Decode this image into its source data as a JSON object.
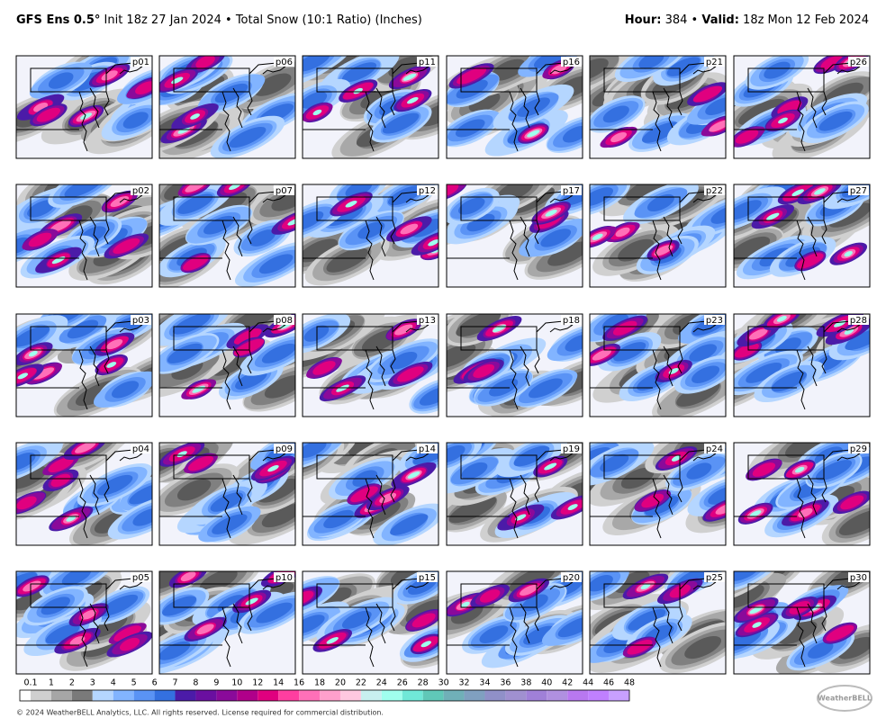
{
  "header": {
    "model": "GFS Ens 0.5°",
    "init": "Init 18z 27 Jan 2024",
    "separator": "•",
    "product": "Total Snow (10:1 Ratio) (Inches)",
    "hour_label": "Hour:",
    "hour": "384",
    "valid_label": "Valid:",
    "valid": "18z Mon 12 Feb 2024"
  },
  "panels": [
    {
      "label": "p01"
    },
    {
      "label": "p06"
    },
    {
      "label": "p11"
    },
    {
      "label": "p16"
    },
    {
      "label": "p21"
    },
    {
      "label": "p26"
    },
    {
      "label": "p02"
    },
    {
      "label": "p07"
    },
    {
      "label": "p12"
    },
    {
      "label": "p17"
    },
    {
      "label": "p22"
    },
    {
      "label": "p27"
    },
    {
      "label": "p03"
    },
    {
      "label": "p08"
    },
    {
      "label": "p13"
    },
    {
      "label": "p18"
    },
    {
      "label": "p23"
    },
    {
      "label": "p28"
    },
    {
      "label": "p04"
    },
    {
      "label": "p09"
    },
    {
      "label": "p14"
    },
    {
      "label": "p19"
    },
    {
      "label": "p24"
    },
    {
      "label": "p29"
    },
    {
      "label": "p05"
    },
    {
      "label": "p10"
    },
    {
      "label": "p15"
    },
    {
      "label": "p20"
    },
    {
      "label": "p25"
    },
    {
      "label": "p30"
    }
  ],
  "colorbar": {
    "ticks": [
      0.1,
      1,
      2,
      3,
      4,
      5,
      6,
      7,
      8,
      9,
      10,
      12,
      14,
      16,
      18,
      20,
      22,
      24,
      26,
      28,
      30,
      32,
      34,
      36,
      38,
      40,
      42,
      44,
      46,
      48
    ],
    "colors": [
      "#ffffff",
      "#cfcfcf",
      "#a6a6a6",
      "#7a7a7a",
      "#b5d6ff",
      "#82b4ff",
      "#5a93f5",
      "#3470e0",
      "#4b1ba8",
      "#6a0fa0",
      "#8a0a9a",
      "#b0008a",
      "#e0007f",
      "#ff3ea0",
      "#ff70b8",
      "#ffa0cc",
      "#ffc8e0",
      "#c8f0f0",
      "#a0ffee",
      "#70e8d8",
      "#60c8b8",
      "#70b0b8",
      "#80a0c0",
      "#9090c8",
      "#a090d0",
      "#a080d8",
      "#b090e0",
      "#b878f0",
      "#c080ff",
      "#c8a0ff"
    ]
  },
  "footer": {
    "copyright": "© 2024 WeatherBELL Analytics, LLC. All rights reserved. License required for commercial distribution.",
    "logo": "WeatherBELL"
  }
}
